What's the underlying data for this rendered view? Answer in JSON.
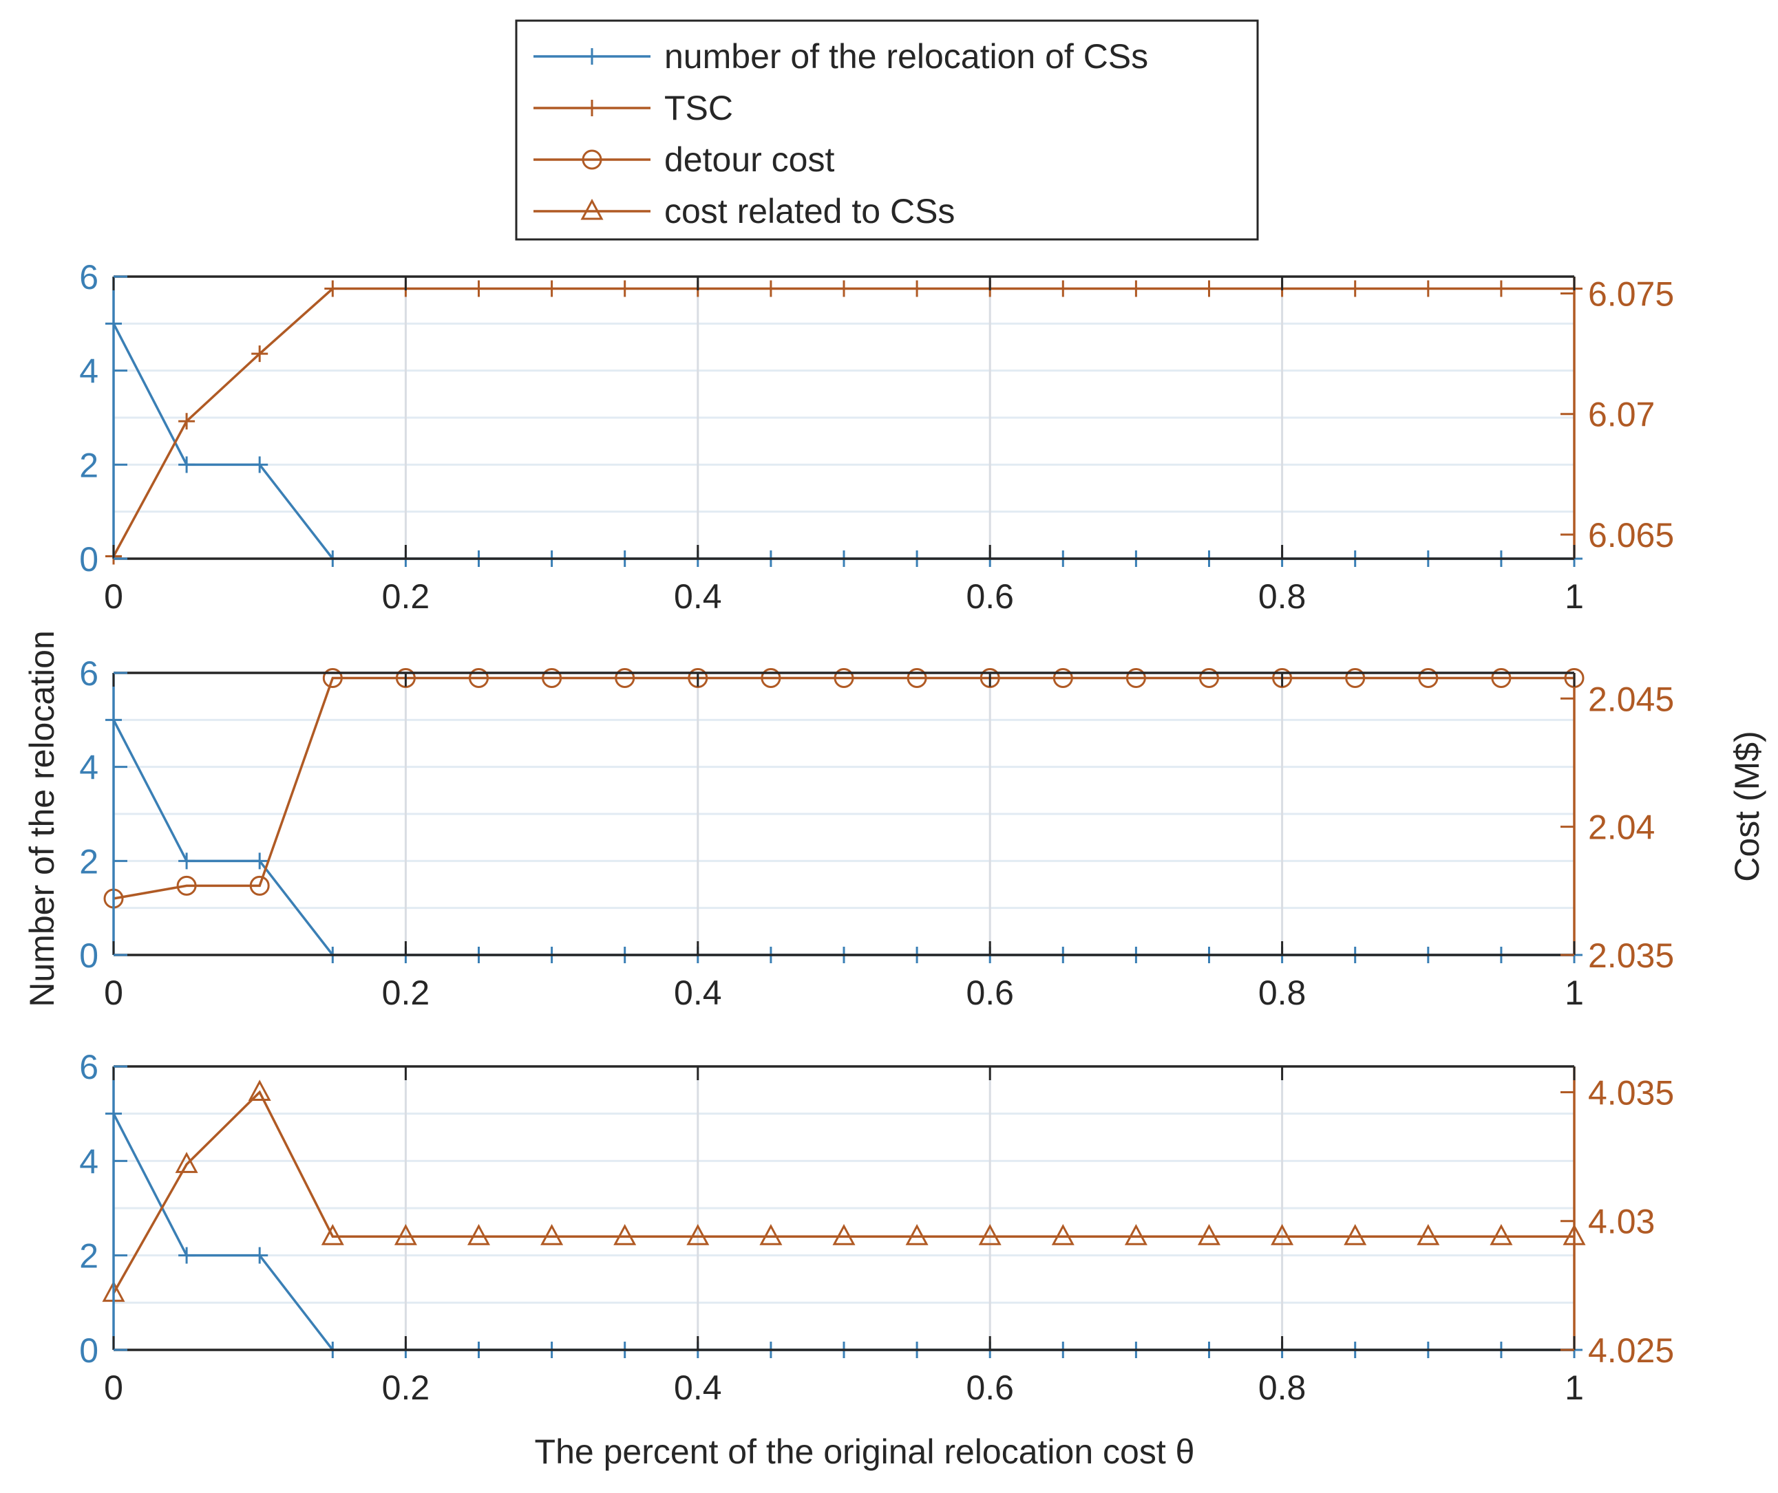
{
  "colors": {
    "blue": "#3a7fb5",
    "orange": "#b05a24",
    "axis": "#262626",
    "grid": "#d9dde3",
    "minorGrid": "#e2ebf3"
  },
  "legend": {
    "location": "top-center",
    "entries": [
      {
        "label": "number of the relocation of CSs",
        "color": "#3a7fb5",
        "marker": "plus"
      },
      {
        "label": "TSC",
        "color": "#b05a24",
        "marker": "plus"
      },
      {
        "label": "detour cost",
        "color": "#b05a24",
        "marker": "circle"
      },
      {
        "label": "cost related to CSs",
        "color": "#b05a24",
        "marker": "triangle"
      }
    ]
  },
  "shared": {
    "ylabel_left": "Number of the relocation",
    "ylabel_right": "Cost (M$)",
    "xlabel": "The percent of the original relocation cost θ",
    "xlim": [
      0,
      1
    ],
    "xticks": [
      "0",
      "0.2",
      "0.4",
      "0.6",
      "0.8",
      "1"
    ],
    "yticks_left": [
      "0",
      "2",
      "4",
      "6"
    ],
    "grid": true
  },
  "chart_data": [
    {
      "type": "line",
      "x": [
        0,
        0.05,
        0.1,
        0.15,
        0.2,
        0.25,
        0.3,
        0.35,
        0.4,
        0.45,
        0.5,
        0.55,
        0.6,
        0.65,
        0.7,
        0.75,
        0.8,
        0.85,
        0.9,
        0.95,
        1
      ],
      "left_series": {
        "name": "number of the relocation of CSs",
        "marker": "plus",
        "values": [
          5,
          2,
          2,
          0,
          0,
          0,
          0,
          0,
          0,
          0,
          0,
          0,
          0,
          0,
          0,
          0,
          0,
          0,
          0,
          0,
          0
        ]
      },
      "right_series": {
        "name": "TSC",
        "marker": "plus",
        "values": [
          6.0641,
          6.0697,
          6.0725,
          6.0752,
          6.0752,
          6.0752,
          6.0752,
          6.0752,
          6.0752,
          6.0752,
          6.0752,
          6.0752,
          6.0752,
          6.0752,
          6.0752,
          6.0752,
          6.0752,
          6.0752,
          6.0752,
          6.0752,
          6.0752
        ]
      },
      "ylim_left": [
        0,
        6
      ],
      "ylim_right": [
        6.064,
        6.0757
      ],
      "yticks_right": [
        "6.065",
        "6.07",
        "6.075"
      ],
      "ytick_values_right": [
        6.065,
        6.07,
        6.075
      ]
    },
    {
      "type": "line",
      "x": [
        0,
        0.05,
        0.1,
        0.15,
        0.2,
        0.25,
        0.3,
        0.35,
        0.4,
        0.45,
        0.5,
        0.55,
        0.6,
        0.65,
        0.7,
        0.75,
        0.8,
        0.85,
        0.9,
        0.95,
        1
      ],
      "left_series": {
        "name": "number of the relocation of CSs",
        "marker": "plus",
        "values": [
          5,
          2,
          2,
          0,
          0,
          0,
          0,
          0,
          0,
          0,
          0,
          0,
          0,
          0,
          0,
          0,
          0,
          0,
          0,
          0,
          0
        ]
      },
      "right_series": {
        "name": "detour cost",
        "marker": "circle",
        "values": [
          2.0372,
          2.0377,
          2.0377,
          2.0458,
          2.0458,
          2.0458,
          2.0458,
          2.0458,
          2.0458,
          2.0458,
          2.0458,
          2.0458,
          2.0458,
          2.0458,
          2.0458,
          2.0458,
          2.0458,
          2.0458,
          2.0458,
          2.0458,
          2.0458
        ]
      },
      "ylim_left": [
        0,
        6
      ],
      "ylim_right": [
        2.035,
        2.046
      ],
      "yticks_right": [
        "2.035",
        "2.04",
        "2.045"
      ],
      "ytick_values_right": [
        2.035,
        2.04,
        2.045
      ]
    },
    {
      "type": "line",
      "x": [
        0,
        0.05,
        0.1,
        0.15,
        0.2,
        0.25,
        0.3,
        0.35,
        0.4,
        0.45,
        0.5,
        0.55,
        0.6,
        0.65,
        0.7,
        0.75,
        0.8,
        0.85,
        0.9,
        0.95,
        1
      ],
      "left_series": {
        "name": "number of the relocation of CSs",
        "marker": "plus",
        "values": [
          5,
          2,
          2,
          0,
          0,
          0,
          0,
          0,
          0,
          0,
          0,
          0,
          0,
          0,
          0,
          0,
          0,
          0,
          0,
          0,
          0
        ]
      },
      "right_series": {
        "name": "cost related to CSs",
        "marker": "triangle",
        "values": [
          4.0272,
          4.0322,
          4.035,
          4.0294,
          4.0294,
          4.0294,
          4.0294,
          4.0294,
          4.0294,
          4.0294,
          4.0294,
          4.0294,
          4.0294,
          4.0294,
          4.0294,
          4.0294,
          4.0294,
          4.0294,
          4.0294,
          4.0294,
          4.0294
        ]
      },
      "ylim_left": [
        0,
        6
      ],
      "ylim_right": [
        4.025,
        4.036
      ],
      "yticks_right": [
        "4.025",
        "4.03",
        "4.035"
      ],
      "ytick_values_right": [
        4.025,
        4.03,
        4.035
      ]
    }
  ]
}
